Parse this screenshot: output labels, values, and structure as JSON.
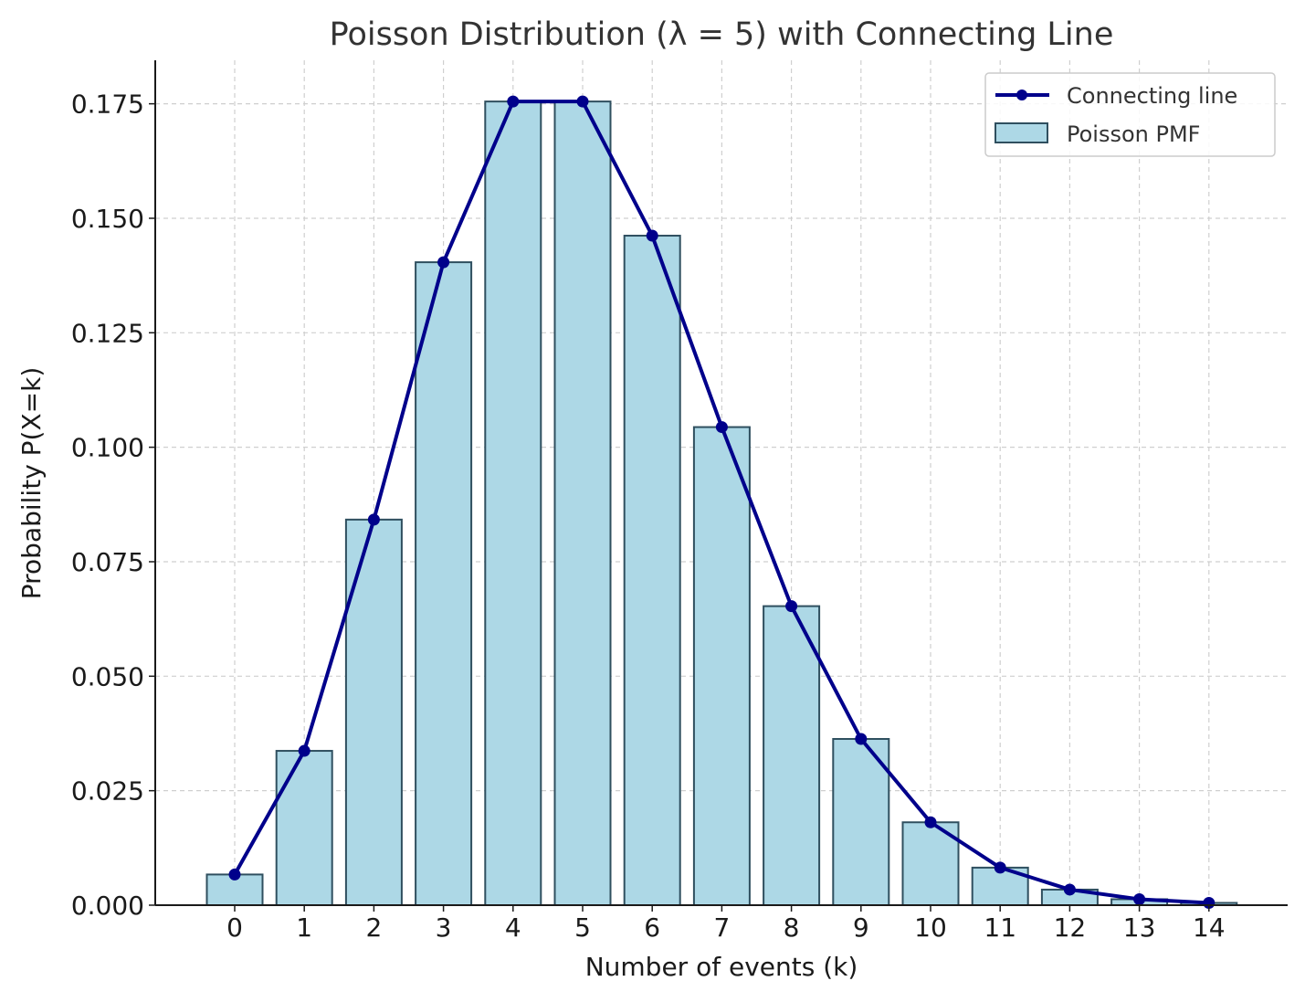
{
  "chart_data": {
    "type": "bar",
    "title": "Poisson Distribution (λ = 5) with Connecting Line",
    "xlabel": "Number of events (k)",
    "ylabel": "Probability P(X=k)",
    "categories": [
      "0",
      "1",
      "2",
      "3",
      "4",
      "5",
      "6",
      "7",
      "8",
      "9",
      "10",
      "11",
      "12",
      "13",
      "14"
    ],
    "x": [
      0,
      1,
      2,
      3,
      4,
      5,
      6,
      7,
      8,
      9,
      10,
      11,
      12,
      13,
      14
    ],
    "ylim": [
      0,
      0.1845
    ],
    "yticks": [
      0.0,
      0.025,
      0.05,
      0.075,
      0.1,
      0.125,
      0.15,
      0.175
    ],
    "ytick_labels": [
      "0.000",
      "0.025",
      "0.050",
      "0.075",
      "0.100",
      "0.125",
      "0.150",
      "0.175"
    ],
    "grid": true,
    "legend_position": "top-right",
    "series": [
      {
        "name": "Poisson PMF",
        "kind": "bar",
        "color": "#add8e6",
        "edge_color": "#2f4f5f",
        "values": [
          0.0067,
          0.0337,
          0.0842,
          0.1404,
          0.1755,
          0.1755,
          0.1462,
          0.1044,
          0.0653,
          0.0363,
          0.0181,
          0.0082,
          0.0034,
          0.0013,
          0.0005
        ]
      },
      {
        "name": "Connecting line",
        "kind": "line",
        "color": "#00008b",
        "marker": "circle",
        "values": [
          0.0067,
          0.0337,
          0.0842,
          0.1404,
          0.1755,
          0.1755,
          0.1462,
          0.1044,
          0.0653,
          0.0363,
          0.0181,
          0.0082,
          0.0034,
          0.0013,
          0.0005
        ]
      }
    ]
  }
}
